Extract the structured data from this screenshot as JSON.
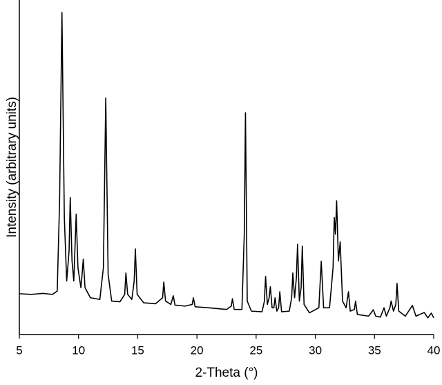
{
  "chart_data": {
    "type": "line",
    "x_label": "2-Theta (°)",
    "y_label": "Intensity (arbitrary units)",
    "xlim": [
      5,
      40
    ],
    "xticks": [
      5,
      10,
      15,
      20,
      25,
      30,
      35,
      40
    ],
    "ylim": [
      0,
      100
    ],
    "series": [
      {
        "color": "#000000",
        "x": [
          5,
          6,
          7,
          7.8,
          8.2,
          8.4,
          8.6,
          8.8,
          9.0,
          9.2,
          9.3,
          9.45,
          9.6,
          9.7,
          9.8,
          9.95,
          10.2,
          10.3,
          10.4,
          10.55,
          11,
          11.8,
          12.1,
          12.3,
          12.5,
          12.8,
          13.5,
          13.9,
          14.0,
          14.15,
          14.5,
          14.7,
          14.8,
          14.95,
          15.5,
          16.5,
          17.1,
          17.2,
          17.35,
          17.8,
          18.0,
          18.15,
          19,
          19.6,
          19.7,
          19.85,
          21,
          22.5,
          22.9,
          23.0,
          23.15,
          23.8,
          24.0,
          24.1,
          24.25,
          24.6,
          25.5,
          25.7,
          25.8,
          25.95,
          26.1,
          26.2,
          26.35,
          26.5,
          26.6,
          26.75,
          26.9,
          27.0,
          27.15,
          27.8,
          28.0,
          28.1,
          28.25,
          28.4,
          28.5,
          28.65,
          28.8,
          28.9,
          29.05,
          29.5,
          30.3,
          30.5,
          30.7,
          31.2,
          31.5,
          31.6,
          31.7,
          31.8,
          31.95,
          32.1,
          32.3,
          32.6,
          32.8,
          32.95,
          33.3,
          33.4,
          33.55,
          34.5,
          34.9,
          35.1,
          35.5,
          35.8,
          36.0,
          36.3,
          36.4,
          36.6,
          36.8,
          36.9,
          37.05,
          37.6,
          38.2,
          38.5,
          39.2,
          39.5,
          39.8,
          40
        ],
        "values": [
          12.2,
          12,
          12.3,
          12,
          13,
          40,
          96.3,
          35,
          16,
          25,
          41,
          22,
          16,
          26,
          36,
          20,
          14,
          18,
          22.5,
          14,
          11,
          10.5,
          20,
          70.7,
          18,
          10,
          9.8,
          12,
          18.4,
          12,
          10.5,
          16,
          25.6,
          12,
          9.5,
          9.2,
          11,
          15.7,
          10,
          9,
          11.6,
          8.8,
          8.5,
          9,
          11,
          8.3,
          8,
          7.5,
          8.5,
          10.7,
          7.5,
          7.5,
          30,
          66.3,
          10,
          7,
          6.8,
          10,
          17.4,
          9,
          11,
          14.3,
          8,
          8,
          11,
          7,
          8,
          12.8,
          6.8,
          7,
          11,
          18.4,
          11,
          17,
          27,
          10,
          14,
          26.4,
          9,
          6.5,
          8,
          21.9,
          8,
          8,
          20,
          35,
          30,
          40,
          22,
          27.7,
          10,
          8,
          12.8,
          7,
          7.5,
          10,
          6,
          5.5,
          7.4,
          5.5,
          5.2,
          8,
          5.5,
          8,
          10,
          7,
          9,
          15.3,
          7,
          5.5,
          8.7,
          5.5,
          6.6,
          5,
          6.4,
          5
        ]
      }
    ]
  }
}
